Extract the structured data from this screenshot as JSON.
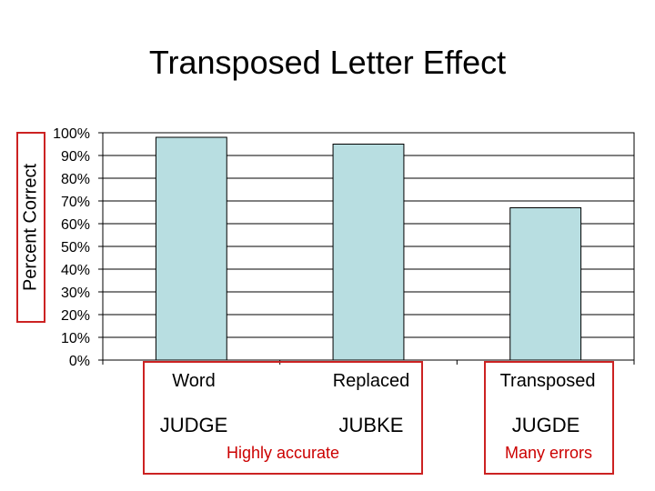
{
  "chart_data": {
    "type": "bar",
    "title": "Transposed Letter Effect",
    "ylabel": "Percent Correct",
    "xlabel": "",
    "categories": [
      "Word",
      "Replaced",
      "Transposed"
    ],
    "values": [
      98,
      95,
      67
    ],
    "ylim": [
      0,
      100
    ],
    "yticks": [
      "0%",
      "10%",
      "20%",
      "30%",
      "40%",
      "50%",
      "60%",
      "70%",
      "80%",
      "90%",
      "100%"
    ],
    "grid": true,
    "bar_color": "#b8dee1",
    "annotations": {
      "examples": [
        "JUDGE",
        "JUBKE",
        "JUGDE"
      ],
      "notes": [
        "Highly accurate",
        "Many errors"
      ]
    }
  },
  "colors": {
    "highlight": "#cc2222",
    "note_text": "#cc0000"
  }
}
